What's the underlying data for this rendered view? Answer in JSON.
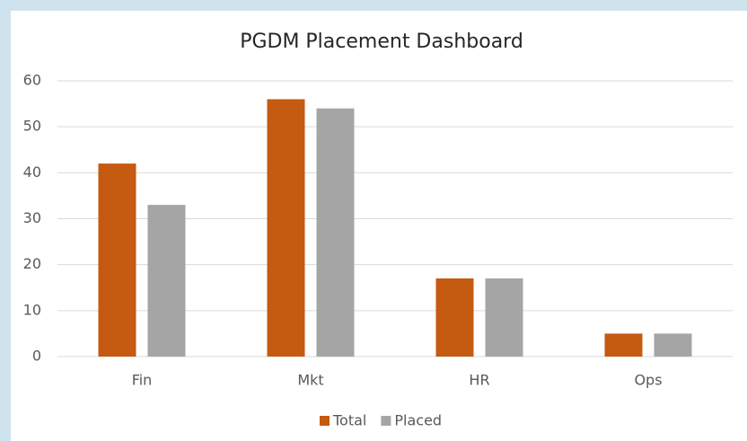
{
  "chart_data": {
    "type": "bar",
    "title": "PGDM Placement Dashboard",
    "categories": [
      "Fin",
      "Mkt",
      "HR",
      "Ops"
    ],
    "series": [
      {
        "name": "Total",
        "color": "#c55a11",
        "values": [
          42,
          56,
          17,
          5
        ]
      },
      {
        "name": "Placed",
        "color": "#a5a5a5",
        "values": [
          33,
          54,
          17,
          5
        ]
      }
    ],
    "ylim": [
      0,
      60
    ],
    "yticks": [
      0,
      10,
      20,
      30,
      40,
      50,
      60
    ],
    "grid": true,
    "legend": "bottom"
  }
}
